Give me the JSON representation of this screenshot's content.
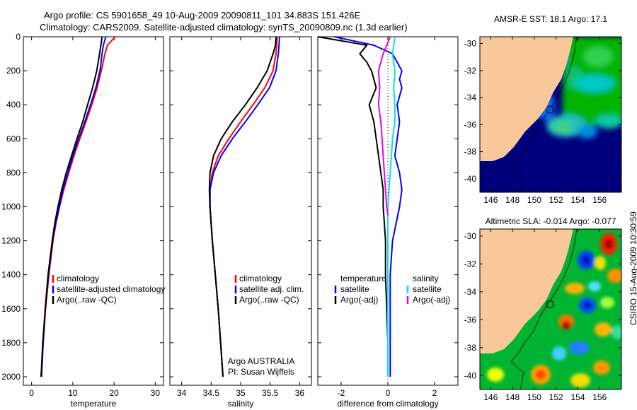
{
  "header": {
    "line1": "Argo profile: CS 5901658_49 10-Aug-2009 20090811_101 34.883S 151.426E",
    "line2": "Climatology: CARS2009. Satellite-adjusted climatology: synTS_20090809.nc (1.3d earlier)"
  },
  "credit": "CSIRO 15-Aug-2009 10:30:59",
  "argo_label": {
    "line1": "Argo AUSTRALIA",
    "line2": "PI: Susan Wijffels"
  },
  "colors": {
    "climatology": "#ff0000",
    "satellite": "#0000ff",
    "argo": "#000000",
    "salinity_sat": "#00e5e5",
    "salinity_argo": "#ee00ee",
    "land": "#f9c89a"
  },
  "chart_data": [
    {
      "type": "line",
      "xlabel": "temperature",
      "xlim": [
        -2,
        32
      ],
      "ylim": [
        0,
        2050
      ],
      "xticks": [
        0,
        10,
        20,
        30
      ],
      "yticks": [
        0,
        200,
        400,
        600,
        800,
        1000,
        1200,
        1400,
        1600,
        1800,
        2000
      ],
      "legend": [
        "climatology",
        "satellite-adjusted climatology",
        "Argo(..raw -QC)"
      ],
      "legend_placement": "lower-right",
      "series": [
        {
          "name": "climatology",
          "color": "#ff0000",
          "depth": [
            0,
            50,
            100,
            200,
            300,
            400,
            500,
            600,
            700,
            800,
            900,
            1000,
            1100,
            1200,
            1400,
            1600,
            1800,
            2000
          ],
          "values": [
            20.3,
            18.4,
            17.8,
            16.9,
            15.9,
            14.6,
            13.2,
            11.7,
            10.3,
            9.0,
            7.8,
            6.8,
            5.9,
            5.2,
            4.2,
            3.4,
            2.8,
            2.4
          ]
        },
        {
          "name": "satellite-adjusted climatology",
          "color": "#0000ff",
          "depth": [
            0,
            50,
            100,
            200,
            300,
            400,
            500,
            600,
            700,
            800,
            900,
            1000,
            1100,
            1200,
            1400,
            1600,
            1800,
            2000
          ],
          "values": [
            18.0,
            17.4,
            17.1,
            16.6,
            15.6,
            14.3,
            12.9,
            11.4,
            10.0,
            8.8,
            7.6,
            6.7,
            5.8,
            5.1,
            4.1,
            3.3,
            2.8,
            2.4
          ]
        },
        {
          "name": "Argo(..raw -QC)",
          "color": "#000000",
          "depth": [
            0,
            50,
            100,
            200,
            300,
            400,
            500,
            600,
            700,
            800,
            900,
            1000,
            1100,
            1200,
            1400,
            1600,
            1800,
            2000
          ],
          "values": [
            17.1,
            16.8,
            16.5,
            15.8,
            14.8,
            13.6,
            12.4,
            11.0,
            9.7,
            8.4,
            7.3,
            6.4,
            5.6,
            5.0,
            4.0,
            3.3,
            2.7,
            2.3
          ]
        }
      ]
    },
    {
      "type": "line",
      "xlabel": "salinity",
      "xlim": [
        33.8,
        36.2
      ],
      "ylim": [
        0,
        2050
      ],
      "xticks": [
        34,
        34.5,
        35,
        35.5,
        36
      ],
      "legend": [
        "climatology",
        "satellite adj. clim.",
        "Argo(..raw -QC)"
      ],
      "legend_placement": "lower-right",
      "series": [
        {
          "name": "climatology",
          "color": "#ff0000",
          "depth": [
            0,
            50,
            100,
            200,
            300,
            400,
            500,
            600,
            700,
            800,
            900,
            1000,
            1200,
            1400,
            1600,
            1800,
            2000
          ],
          "values": [
            35.62,
            35.61,
            35.6,
            35.55,
            35.41,
            35.21,
            35.0,
            34.8,
            34.62,
            34.52,
            34.48,
            34.48,
            34.52,
            34.57,
            34.62,
            34.66,
            34.7
          ]
        },
        {
          "name": "satellite adj. clim.",
          "color": "#0000ff",
          "depth": [
            0,
            50,
            100,
            200,
            300,
            400,
            500,
            600,
            700,
            800,
            900,
            1000,
            1200,
            1400,
            1600,
            1800,
            2000
          ],
          "values": [
            35.66,
            35.65,
            35.64,
            35.6,
            35.49,
            35.29,
            35.08,
            34.86,
            34.67,
            34.54,
            34.48,
            34.48,
            34.52,
            34.57,
            34.62,
            34.66,
            34.7
          ]
        },
        {
          "name": "Argo(..raw -QC)",
          "color": "#000000",
          "depth": [
            0,
            50,
            100,
            200,
            300,
            400,
            500,
            600,
            700,
            800,
            900,
            1000,
            1200,
            1400,
            1600,
            1800,
            2000
          ],
          "values": [
            35.6,
            35.59,
            35.55,
            35.45,
            35.28,
            35.08,
            34.86,
            34.67,
            34.54,
            34.48,
            34.47,
            34.48,
            34.52,
            34.57,
            34.62,
            34.66,
            34.7
          ]
        }
      ]
    },
    {
      "type": "line",
      "xlabel": "difference from climatology",
      "xlim": [
        -3,
        3
      ],
      "ylim": [
        0,
        2050
      ],
      "xticks": [
        -2,
        0,
        2
      ],
      "legend": [
        "temperature",
        "satellite",
        "Argo(-adj)",
        "salinity",
        "satellite",
        "Argo(-adj)"
      ],
      "legend_placement": "lower",
      "series": [
        {
          "name": "temperature satellite",
          "color": "#0000ff",
          "depth": [
            0,
            50,
            100,
            150,
            200,
            250,
            300,
            400,
            500,
            600,
            700,
            800,
            900,
            1000,
            1200,
            1400,
            1600,
            1800,
            2000
          ],
          "values": [
            -2.3,
            -0.6,
            0.2,
            0.4,
            0.6,
            0.5,
            0.6,
            0.4,
            0.5,
            0.4,
            0.3,
            0.5,
            0.6,
            0.5,
            0.2,
            0.1,
            0.1,
            0.1,
            0.1
          ]
        },
        {
          "name": "temperature Argo(-adj)",
          "color": "#000000",
          "depth": [
            0,
            50,
            100,
            150,
            200,
            250,
            300,
            400,
            500,
            600,
            700,
            800,
            900,
            1000,
            1200,
            1400,
            1600,
            1800,
            2000
          ],
          "values": [
            -3.0,
            -0.9,
            -1.2,
            -0.9,
            -0.7,
            -0.6,
            -0.5,
            -0.8,
            -0.6,
            -0.5,
            -0.4,
            -0.3,
            -0.2,
            -0.2,
            -0.1,
            -0.1,
            -0.05,
            0.0,
            0.0
          ]
        },
        {
          "name": "salinity satellite",
          "color": "#00e5e5",
          "depth": [
            0,
            50,
            100,
            200,
            300,
            400,
            500,
            600,
            700,
            800,
            900,
            1000,
            1200,
            1400,
            1600,
            1800,
            2000
          ],
          "values": [
            0.3,
            0.25,
            0.2,
            0.3,
            0.25,
            0.3,
            0.3,
            0.2,
            0.15,
            0.1,
            0.05,
            0.0,
            0.0,
            0.0,
            0.0,
            0.0,
            0.0
          ]
        },
        {
          "name": "salinity Argo(-adj)",
          "color": "#ee00ee",
          "depth": [
            0,
            50,
            100,
            150,
            200,
            300,
            400,
            500,
            600,
            700,
            800,
            900,
            1000,
            1050
          ],
          "values": [
            0.1,
            -0.05,
            -0.2,
            -0.3,
            -0.4,
            -0.35,
            -0.4,
            -0.3,
            -0.25,
            -0.2,
            -0.15,
            -0.1,
            -0.05,
            0.0
          ]
        }
      ]
    },
    {
      "type": "heatmap",
      "title": "AMSR-E SST: 18.1 Argo: 17.1",
      "xlim": [
        145,
        158
      ],
      "ylim": [
        -41,
        -29.5
      ],
      "xticks": [
        146,
        148,
        150,
        152,
        154,
        156
      ],
      "yticks": [
        -30,
        -32,
        -34,
        -36,
        -38,
        -40
      ],
      "marker": {
        "lon": 151.426,
        "lat": -34.883
      }
    },
    {
      "type": "heatmap",
      "title": "Altimetric SLA: -0.014 Argo: -0.077",
      "xlim": [
        145,
        158
      ],
      "ylim": [
        -41,
        -29.5
      ],
      "xticks": [
        146,
        148,
        150,
        152,
        154,
        156
      ],
      "yticks": [
        -30,
        -32,
        -34,
        -36,
        -38,
        -40
      ],
      "marker": {
        "lon": 151.426,
        "lat": -34.883
      }
    }
  ]
}
